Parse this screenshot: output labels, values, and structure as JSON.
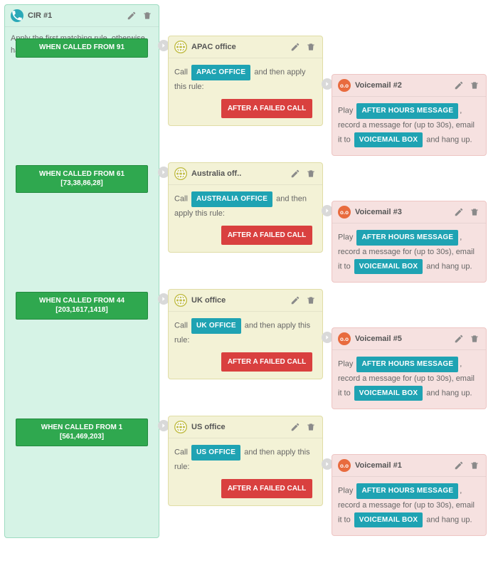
{
  "colors": {
    "cardA_bg": "#d6f3e6",
    "cardA_border": "#9edbc1",
    "cardA_iconBg": "#2aa9b8",
    "condition_bg": "#2fa84f",
    "condition_border": "#238a3f",
    "cardB_bg": "#f3f2d6",
    "cardB_border": "#e0dda6",
    "cardB_iconBg": "#c3bf4c",
    "teal_chip": "#1fa3b3",
    "red_chip": "#d9403f",
    "cardC_bg": "#f6e1e0",
    "cardC_border": "#eec5c3",
    "cardC_iconBg": "#e86b3e",
    "arrow_bg": "#d9d9d9",
    "text": "#5a5a5a",
    "icon_gray": "#8a8a8a"
  },
  "cardA": {
    "title": "CIR #1",
    "subtitle": "Apply the first matching rule, otherwise hang up.",
    "conditions": [
      {
        "line1": "WHEN CALLED FROM 91",
        "line2": ""
      },
      {
        "line1": "WHEN CALLED FROM 61",
        "line2": "[73,38,86,28]"
      },
      {
        "line1": "WHEN CALLED FROM 44",
        "line2": "[203,1617,1418]"
      },
      {
        "line1": "WHEN CALLED FROM 1",
        "line2": "[561,469,203]"
      }
    ]
  },
  "rows": [
    {
      "office": {
        "title": "APAC office",
        "call_prefix": "Call",
        "call_chip": "APAC OFFICE",
        "call_suffix": "and then apply this rule:",
        "after": "AFTER A FAILED CALL"
      },
      "voicemail": {
        "title": "Voicemail #2",
        "play": "Play",
        "msg_chip": "AFTER HOURS MESSAGE",
        "mid": ", record a message for (up to 30s), email it to",
        "box_chip": "VOICEMAIL BOX",
        "tail": "and hang up."
      }
    },
    {
      "office": {
        "title": "Australia off..",
        "call_prefix": "Call",
        "call_chip": "AUSTRALIA OFFICE",
        "call_suffix": "and then apply this rule:",
        "after": "AFTER A FAILED CALL"
      },
      "voicemail": {
        "title": "Voicemail #3",
        "play": "Play",
        "msg_chip": "AFTER HOURS MESSAGE",
        "mid": ", record a message for (up to 30s), email it to",
        "box_chip": "VOICEMAIL BOX",
        "tail": "and hang up."
      }
    },
    {
      "office": {
        "title": "UK office",
        "call_prefix": "Call",
        "call_chip": "UK OFFICE",
        "call_suffix": "and then apply this rule:",
        "after": "AFTER A FAILED CALL"
      },
      "voicemail": {
        "title": "Voicemail #5",
        "play": "Play",
        "msg_chip": "AFTER HOURS MESSAGE",
        "mid": ", record a message for (up to 30s), email it to",
        "box_chip": "VOICEMAIL BOX",
        "tail": "and hang up."
      }
    },
    {
      "office": {
        "title": "US office",
        "call_prefix": "Call",
        "call_chip": "US OFFICE",
        "call_suffix": "and then apply this rule:",
        "after": "AFTER A FAILED CALL"
      },
      "voicemail": {
        "title": "Voicemail #1",
        "play": "Play",
        "msg_chip": "AFTER HOURS MESSAGE",
        "mid": ", record a message for (up to 30s), email it to",
        "box_chip": "VOICEMAIL BOX",
        "tail": "and hang up."
      }
    }
  ],
  "layout": {
    "row_tops": [
      44,
      222,
      400,
      578
    ],
    "condition_tops": [
      44,
      222,
      400,
      578
    ],
    "arrow1_tops": [
      50,
      228,
      406,
      584
    ],
    "arrow2_tops": [
      104,
      282,
      460,
      638
    ],
    "vm_tops": [
      98,
      276,
      454,
      632
    ],
    "cardA_height": 750
  }
}
